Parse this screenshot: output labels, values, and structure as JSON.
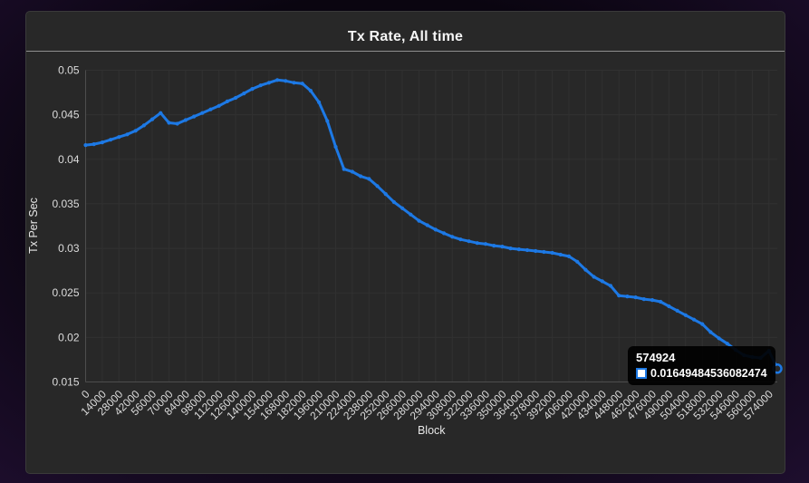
{
  "card": {
    "title": "Tx Rate, All time"
  },
  "chart_data": {
    "type": "line",
    "title": "Tx Rate, All time",
    "xlabel": "Block",
    "ylabel": "Tx Per Sec",
    "ylim": [
      0.015,
      0.05
    ],
    "grid": true,
    "legend_position": "none",
    "line_color": "#1d79e5",
    "xtick_every_n_points": 2,
    "ytick_labels": [
      "0.05",
      "0.045",
      "0.04",
      "0.035",
      "0.03",
      "0.025",
      "0.02",
      "0.015"
    ],
    "xtick_labels": [
      "0",
      "14000",
      "28000",
      "42000",
      "56000",
      "70000",
      "84000",
      "98000",
      "112000",
      "126000",
      "140000",
      "154000",
      "168000",
      "182000",
      "196000",
      "210000",
      "224000",
      "238000",
      "252000",
      "266000",
      "280000",
      "294000",
      "308000",
      "322000",
      "336000",
      "350000",
      "364000",
      "378000",
      "392000",
      "406000",
      "420000",
      "434000",
      "448000",
      "462000",
      "476000",
      "490000",
      "504000",
      "518000",
      "532000",
      "546000",
      "560000",
      "574000"
    ],
    "x": [
      0,
      7000,
      14000,
      21000,
      28000,
      35000,
      42000,
      49000,
      56000,
      63000,
      70000,
      77000,
      84000,
      91000,
      98000,
      105000,
      112000,
      119000,
      126000,
      133000,
      140000,
      147000,
      154000,
      161000,
      168000,
      175000,
      182000,
      189000,
      196000,
      203000,
      210000,
      217000,
      224000,
      231000,
      238000,
      245000,
      252000,
      259000,
      266000,
      273000,
      280000,
      287000,
      294000,
      301000,
      308000,
      315000,
      322000,
      329000,
      336000,
      343000,
      350000,
      357000,
      364000,
      371000,
      378000,
      385000,
      392000,
      399000,
      406000,
      413000,
      420000,
      427000,
      434000,
      441000,
      448000,
      455000,
      462000,
      469000,
      476000,
      483000,
      490000,
      497000,
      504000,
      511000,
      518000,
      525000,
      532000,
      539000,
      546000,
      553000,
      560000,
      567000,
      574000,
      574924
    ],
    "y": [
      0.0416,
      0.0417,
      0.0419,
      0.0422,
      0.0425,
      0.0428,
      0.0432,
      0.0438,
      0.0445,
      0.0452,
      0.0441,
      0.044,
      0.0444,
      0.0448,
      0.0452,
      0.0456,
      0.046,
      0.0465,
      0.0469,
      0.0474,
      0.0479,
      0.0483,
      0.0486,
      0.0489,
      0.0488,
      0.0486,
      0.0485,
      0.0477,
      0.0464,
      0.0443,
      0.0414,
      0.0389,
      0.0386,
      0.0381,
      0.0378,
      0.037,
      0.0361,
      0.0352,
      0.0345,
      0.0338,
      0.0331,
      0.0326,
      0.0321,
      0.0317,
      0.0313,
      0.031,
      0.0308,
      0.0306,
      0.0305,
      0.0303,
      0.0302,
      0.03,
      0.0299,
      0.0298,
      0.0297,
      0.0296,
      0.0295,
      0.0293,
      0.0291,
      0.0285,
      0.0276,
      0.0268,
      0.0263,
      0.0258,
      0.0247,
      0.0246,
      0.0245,
      0.0243,
      0.0242,
      0.024,
      0.0235,
      0.023,
      0.0225,
      0.022,
      0.0215,
      0.0206,
      0.0199,
      0.0193,
      0.0186,
      0.018,
      0.0178,
      0.0177,
      0.0185,
      0.01649484536082474
    ],
    "last_point_highlighted": true
  },
  "tooltip": {
    "title": "574924",
    "value": "0.01649484536082474",
    "swatch_fill": "#ffffff",
    "swatch_border": "#1d79e5"
  },
  "colors": {
    "page_bg": "#0c0613",
    "card_bg": "#282828",
    "grid": "#313131",
    "axis": "#4d4d4d",
    "tick_text": "#dcdcdc",
    "title_text": "#f5f5f5",
    "divider": "#8f8f8f",
    "line": "#1d79e5",
    "tooltip_bg": "#000000"
  }
}
